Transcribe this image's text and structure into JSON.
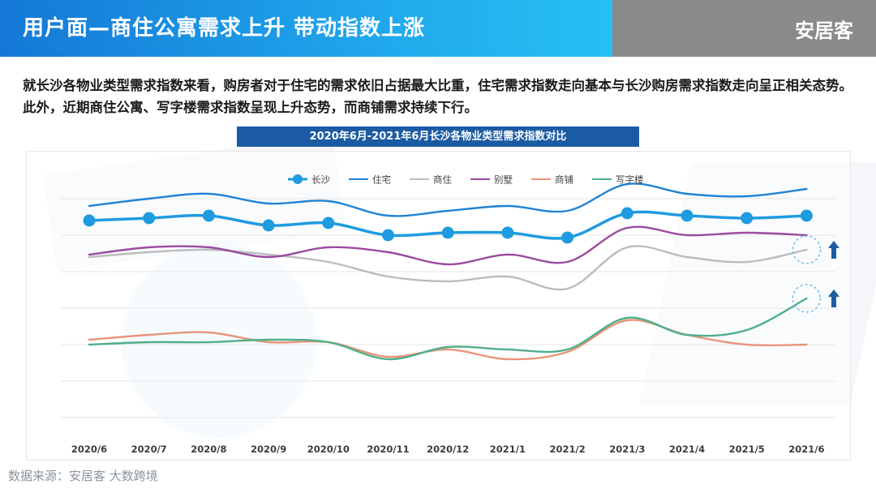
{
  "header": {
    "title": "用户面—商住公寓需求上升 带动指数上涨",
    "brand": "安居客"
  },
  "description": "就长沙各物业类型需求指数来看，购房者对于住宅的需求依旧占据最大比重，住宅需求指数走向基本与长沙购房需求指数走向呈正相关态势。此外，近期商住公寓、写字楼需求指数呈现上升态势，而商铺需求持续下行。",
  "watermark": "数据来源：安居客  大数跨境",
  "colors": {
    "title_gradient_start": "#1478d6",
    "title_gradient_end": "#27c0f3",
    "brand_bar": "#8a8a8a",
    "chart_title_bg": "#1b5ba3",
    "arrow": "#1b5ba3"
  },
  "chart_data": {
    "type": "line",
    "title": "2020年6月-2021年6月长沙各物业类型需求指数对比",
    "categories": [
      "2020/6",
      "2020/7",
      "2020/8",
      "2020/9",
      "2020/10",
      "2020/11",
      "2020/12",
      "2021/1",
      "2021/2",
      "2021/3",
      "2021/4",
      "2021/5",
      "2021/6"
    ],
    "ylim": [
      0,
      100
    ],
    "grid": true,
    "legend_position": "top-left",
    "series": [
      {
        "name": "长沙",
        "color": "#1f9be0",
        "markers": true,
        "values": [
          76,
          77,
          78,
          74,
          75,
          70,
          71,
          71,
          69,
          79,
          78,
          77,
          78
        ]
      },
      {
        "name": "住宅",
        "color": "#2183d4",
        "markers": false,
        "values": [
          82,
          85,
          87,
          83,
          84,
          78,
          80,
          82,
          80,
          91,
          87,
          86,
          89
        ]
      },
      {
        "name": "商住",
        "color": "#bcbcbc",
        "markers": false,
        "values": [
          61,
          63,
          64,
          62,
          59,
          53,
          51,
          53,
          48,
          65,
          61,
          59,
          64
        ]
      },
      {
        "name": "别墅",
        "color": "#9b4aa0",
        "markers": false,
        "values": [
          62,
          65,
          65,
          61,
          65,
          63,
          58,
          62,
          59,
          73,
          70,
          71,
          70
        ]
      },
      {
        "name": "商铺",
        "color": "#e8957a",
        "markers": false,
        "values": [
          27,
          29,
          30,
          26,
          26,
          20,
          23,
          19,
          22,
          35,
          29,
          25,
          25
        ]
      },
      {
        "name": "写字楼",
        "color": "#4fae8a",
        "markers": false,
        "values": [
          25,
          26,
          26,
          27,
          26,
          19,
          24,
          23,
          23,
          36,
          29,
          31,
          44
        ]
      }
    ],
    "annotations": [
      "up-arrow 商住",
      "up-arrow 写字楼"
    ]
  }
}
